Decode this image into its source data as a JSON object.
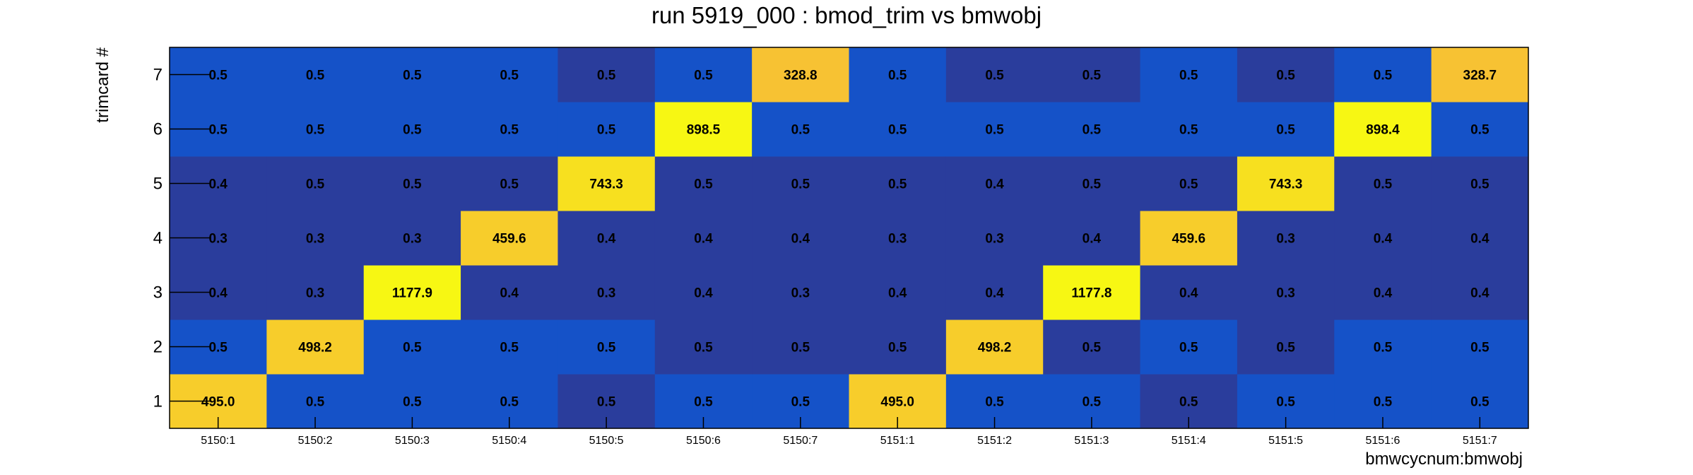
{
  "chart_data": {
    "type": "heatmap",
    "title": "run 5919_000 : bmod_trim vs bmwobj",
    "xlabel": "bmwcycnum:bmwobj",
    "ylabel": "trimcard #",
    "x_categories": [
      "5150:1",
      "5150:2",
      "5150:3",
      "5150:4",
      "5150:5",
      "5150:6",
      "5150:7",
      "5151:1",
      "5151:2",
      "5151:3",
      "5151:4",
      "5151:5",
      "5151:6",
      "5151:7"
    ],
    "y_categories": [
      "1",
      "2",
      "3",
      "4",
      "5",
      "6",
      "7"
    ],
    "values_labels": [
      [
        "495.0",
        "0.5",
        "0.5",
        "0.5",
        "0.5",
        "0.5",
        "0.5",
        "495.0",
        "0.5",
        "0.5",
        "0.5",
        "0.5",
        "0.5",
        "0.5"
      ],
      [
        "0.5",
        "498.2",
        "0.5",
        "0.5",
        "0.5",
        "0.5",
        "0.5",
        "0.5",
        "498.2",
        "0.5",
        "0.5",
        "0.5",
        "0.5",
        "0.5"
      ],
      [
        "0.4",
        "0.3",
        "1177.9",
        "0.4",
        "0.3",
        "0.4",
        "0.3",
        "0.4",
        "0.4",
        "1177.8",
        "0.4",
        "0.3",
        "0.4",
        "0.4"
      ],
      [
        "0.3",
        "0.3",
        "0.3",
        "459.6",
        "0.4",
        "0.4",
        "0.4",
        "0.3",
        "0.3",
        "0.4",
        "459.6",
        "0.3",
        "0.4",
        "0.4"
      ],
      [
        "0.4",
        "0.5",
        "0.5",
        "0.5",
        "743.3",
        "0.5",
        "0.5",
        "0.5",
        "0.4",
        "0.5",
        "0.5",
        "743.3",
        "0.5",
        "0.5"
      ],
      [
        "0.5",
        "0.5",
        "0.5",
        "0.5",
        "0.5",
        "898.5",
        "0.5",
        "0.5",
        "0.5",
        "0.5",
        "0.5",
        "0.5",
        "898.4",
        "0.5"
      ],
      [
        "0.5",
        "0.5",
        "0.5",
        "0.5",
        "0.5",
        "0.5",
        "328.8",
        "0.5",
        "0.5",
        "0.5",
        "0.5",
        "0.5",
        "0.5",
        "328.7"
      ]
    ],
    "cell_colors": [
      [
        "#f7cd2b",
        "#1552c8",
        "#1552c8",
        "#1552c8",
        "#2a3d9c",
        "#1552c8",
        "#1552c8",
        "#f7cd2b",
        "#1552c8",
        "#1552c8",
        "#2a3d9c",
        "#1552c8",
        "#1552c8",
        "#1552c8"
      ],
      [
        "#1552c8",
        "#f7cd2b",
        "#1552c8",
        "#1552c8",
        "#1552c8",
        "#2a3d9c",
        "#2a3d9c",
        "#2a3d9c",
        "#f7cd2b",
        "#2a3d9c",
        "#1552c8",
        "#2a3d9c",
        "#1552c8",
        "#1552c8"
      ],
      [
        "#2a3d9c",
        "#2a3d9c",
        "#f7f713",
        "#2a3d9c",
        "#2a3d9c",
        "#2a3d9c",
        "#2a3d9c",
        "#2a3d9c",
        "#2a3d9c",
        "#f7f713",
        "#2a3d9c",
        "#2a3d9c",
        "#2a3d9c",
        "#2a3d9c"
      ],
      [
        "#2a3d9c",
        "#2a3d9c",
        "#2a3d9c",
        "#f7cd2b",
        "#2a3d9c",
        "#2a3d9c",
        "#2a3d9c",
        "#2a3d9c",
        "#2a3d9c",
        "#2a3d9c",
        "#f7cd2b",
        "#2a3d9c",
        "#2a3d9c",
        "#2a3d9c"
      ],
      [
        "#2a3d9c",
        "#2a3d9c",
        "#2a3d9c",
        "#2a3d9c",
        "#f7e01f",
        "#2a3d9c",
        "#2a3d9c",
        "#2a3d9c",
        "#2a3d9c",
        "#2a3d9c",
        "#2a3d9c",
        "#f7e01f",
        "#2a3d9c",
        "#2a3d9c"
      ],
      [
        "#1552c8",
        "#1552c8",
        "#1552c8",
        "#1552c8",
        "#1552c8",
        "#f7f713",
        "#1552c8",
        "#1552c8",
        "#1552c8",
        "#1552c8",
        "#1552c8",
        "#1552c8",
        "#f7f713",
        "#1552c8"
      ],
      [
        "#1552c8",
        "#1552c8",
        "#1552c8",
        "#1552c8",
        "#2a3d9c",
        "#1552c8",
        "#f7c233",
        "#1552c8",
        "#2a3d9c",
        "#2a3d9c",
        "#1552c8",
        "#2a3d9c",
        "#1552c8",
        "#f7c233"
      ]
    ],
    "legend": "none",
    "grid": false
  }
}
